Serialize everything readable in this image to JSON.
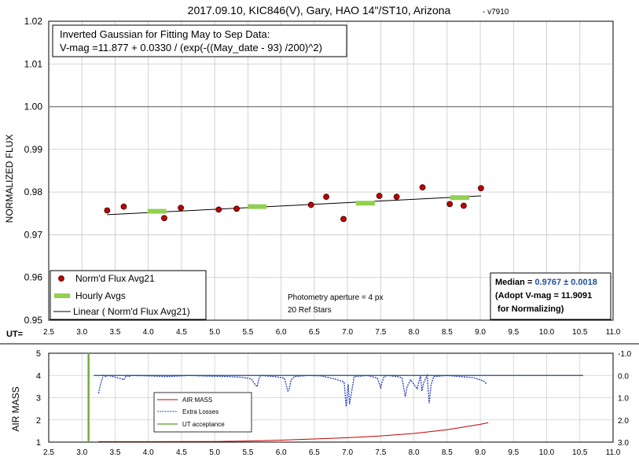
{
  "chart_data": [
    {
      "type": "scatter",
      "title": "2017.09.10, KIC846(V), Gary, HAO 14\"/ST10, Arizona",
      "title_suffix": "- v7910",
      "ylabel": "NORMALIZED FLUX",
      "xaxis_prefix": "UT=",
      "xlim": [
        2.5,
        11.0
      ],
      "ylim": [
        0.95,
        1.02
      ],
      "x_ticks": [
        "2.5",
        "3.0",
        "3.5",
        "4.0",
        "4.5",
        "5.0",
        "5.5",
        "6.0",
        "6.5",
        "7.0",
        "7.5",
        "8.0",
        "8.5",
        "9.0",
        "9.5",
        "10.0",
        "10.5",
        "11.0"
      ],
      "y_ticks": [
        "0.95",
        "0.96",
        "0.97",
        "0.98",
        "0.99",
        "1.00",
        "1.01",
        "1.02"
      ],
      "reference_line": 1.0,
      "grid": true,
      "series": [
        {
          "name": "Norm'd Flux Avg21",
          "color": "#c00000",
          "x": [
            3.38,
            3.63,
            4.24,
            4.49,
            5.06,
            5.33,
            6.45,
            6.68,
            6.94,
            7.48,
            7.74,
            8.13,
            8.54,
            8.75,
            9.01
          ],
          "y": [
            0.9757,
            0.9766,
            0.9739,
            0.9763,
            0.9759,
            0.9761,
            0.977,
            0.9789,
            0.9737,
            0.9791,
            0.9789,
            0.9811,
            0.9772,
            0.9768,
            0.9809
          ]
        },
        {
          "name": "Hourly Avgs",
          "color": "#92d050",
          "x": [
            4.13,
            5.64,
            7.27,
            8.69
          ],
          "y": [
            0.9755,
            0.9766,
            0.9774,
            0.9787
          ]
        },
        {
          "name": "Linear ( Norm'd Flux Avg21)",
          "color": "#000000",
          "x": [
            3.38,
            9.01
          ],
          "y": [
            0.9747,
            0.9791
          ]
        }
      ],
      "legend_position": "bottom-left",
      "annotations": {
        "fit_line1": "Inverted Gaussian for Fitting May to Sep Data:",
        "fit_line2": "V-mag =11.877 + 0.0330 / (exp(-((May_date - 93) /200)^2)",
        "aperture": "Photometry aperture = 4 px",
        "ref_stars": "20 Ref Stars",
        "median_label": "Median = ",
        "median_value": "0.9767 ± 0.0018",
        "adopt_line": "(Adopt V-mag = 11.9091",
        "normalizing_line": " for Normalizing)"
      }
    },
    {
      "type": "line",
      "ylabel": "AIR MASS",
      "xlim": [
        2.5,
        11.0
      ],
      "ylim": [
        1,
        5
      ],
      "y2lim": [
        3.0,
        -1.0
      ],
      "x_ticks": [
        "2.5",
        "3.0",
        "3.5",
        "4.0",
        "4.5",
        "5.0",
        "5.5",
        "6.0",
        "6.5",
        "7.0",
        "7.5",
        "8.0",
        "8.5",
        "9.0",
        "9.5",
        "10.0",
        "10.5",
        "11.0"
      ],
      "y_ticks": [
        "1",
        "2",
        "3",
        "4",
        "5"
      ],
      "y2_ticks": [
        "-1.0",
        "0.0",
        "1.0",
        "2.0",
        "3.0"
      ],
      "reference_line_y2": 0.0,
      "series": [
        {
          "name": "AIR MASS",
          "color": "#c00000",
          "x": [
            3.25,
            4.0,
            5.0,
            5.5,
            6.0,
            6.5,
            7.0,
            7.5,
            8.0,
            8.5,
            9.0,
            9.12
          ],
          "y": [
            1.02,
            1.02,
            1.03,
            1.05,
            1.09,
            1.14,
            1.2,
            1.28,
            1.39,
            1.56,
            1.8,
            1.87
          ]
        },
        {
          "name": "Extra Losses",
          "color": "#1f3fbf",
          "x": [
            3.25,
            3.28,
            3.32,
            3.36,
            3.4,
            3.6,
            3.63,
            3.67,
            3.7,
            3.75,
            4.0,
            4.3,
            4.6,
            4.9,
            5.2,
            5.4,
            5.55,
            5.62,
            5.64,
            5.67,
            5.7,
            5.9,
            6.05,
            6.1,
            6.12,
            6.15,
            6.2,
            6.4,
            6.6,
            6.8,
            6.95,
            6.98,
            7.01,
            7.03,
            7.1,
            7.3,
            7.45,
            7.5,
            7.52,
            7.55,
            7.6,
            7.75,
            7.82,
            7.87,
            7.9,
            7.95,
            8.05,
            8.1,
            8.12,
            8.15,
            8.2,
            8.23,
            8.26,
            8.3,
            8.5,
            8.7,
            8.9,
            9.05,
            9.1
          ],
          "y": [
            0.8,
            0.4,
            0.0,
            0.05,
            0.0,
            0.15,
            0.2,
            0.0,
            0.05,
            0.0,
            0.02,
            0.05,
            0.0,
            0.03,
            0.05,
            0.08,
            0.15,
            0.45,
            0.5,
            0.1,
            0.0,
            0.05,
            0.12,
            0.7,
            0.65,
            0.2,
            0.05,
            0.0,
            0.02,
            0.15,
            0.3,
            1.4,
            0.4,
            1.3,
            0.05,
            0.0,
            0.12,
            0.55,
            0.3,
            0.05,
            0.0,
            0.05,
            0.1,
            0.95,
            0.5,
            0.2,
            0.6,
            0.0,
            0.7,
            0.3,
            0.0,
            1.25,
            0.4,
            0.05,
            0.0,
            0.05,
            0.1,
            0.25,
            0.4
          ]
        },
        {
          "name": "UT acceptance",
          "color": "#70ad47",
          "x": [
            3.1,
            3.1
          ],
          "y": [
            1,
            5
          ]
        }
      ],
      "legend_position": "left-center"
    }
  ]
}
